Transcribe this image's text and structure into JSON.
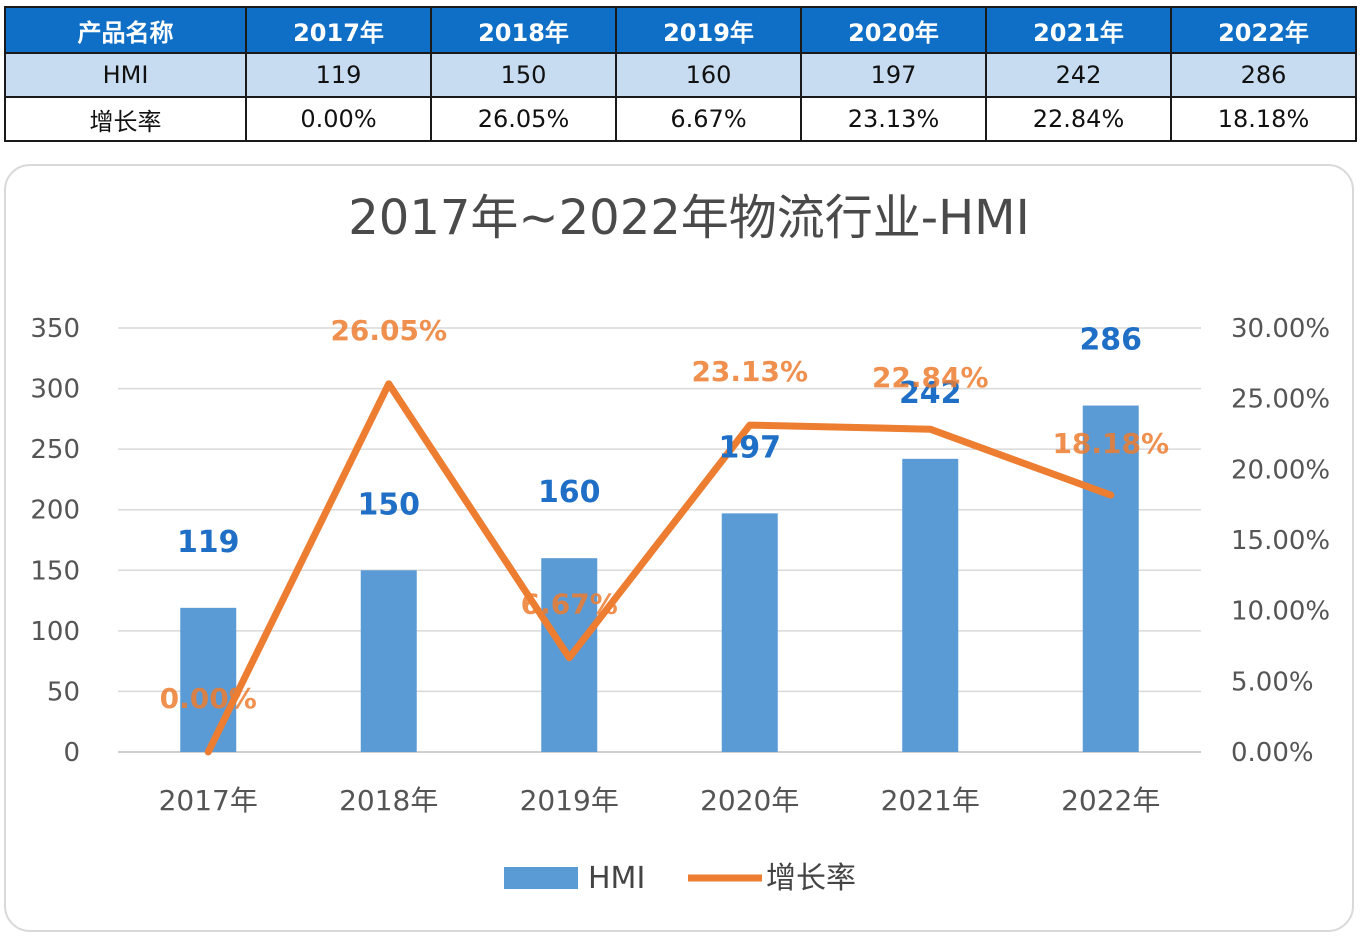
{
  "table": {
    "header_label": "产品名称",
    "years": [
      "2017年",
      "2018年",
      "2019年",
      "2020年",
      "2021年",
      "2022年"
    ],
    "rows": [
      {
        "label": "HMI",
        "cells": [
          "119",
          "150",
          "160",
          "197",
          "242",
          "286"
        ]
      },
      {
        "label": "增长率",
        "cells": [
          "0.00%",
          "26.05%",
          "6.67%",
          "23.13%",
          "22.84%",
          "18.18%"
        ]
      }
    ]
  },
  "chart_data": {
    "type": "bar",
    "title": "2017年~2022年物流行业-HMI",
    "categories": [
      "2017年",
      "2018年",
      "2019年",
      "2020年",
      "2021年",
      "2022年"
    ],
    "series": [
      {
        "name": "HMI",
        "type": "bar",
        "axis": "left",
        "values": [
          119,
          150,
          160,
          197,
          242,
          286
        ],
        "labels": [
          "119",
          "150",
          "160",
          "197",
          "242",
          "286"
        ],
        "color": "#5b9bd5",
        "label_color": "#1f6fc6"
      },
      {
        "name": "增长率",
        "type": "line",
        "axis": "right",
        "values": [
          0.0,
          26.05,
          6.67,
          23.13,
          22.84,
          18.18
        ],
        "labels": [
          "0.00%",
          "26.05%",
          "6.67%",
          "23.13%",
          "22.84%",
          "18.18%"
        ],
        "color": "#ed7d31"
      }
    ],
    "y_left": {
      "range": [
        0,
        350
      ],
      "ticks": [
        "0",
        "50",
        "100",
        "150",
        "200",
        "250",
        "300",
        "350"
      ]
    },
    "y_right": {
      "range": [
        0,
        30
      ],
      "ticks": [
        "0.00%",
        "5.00%",
        "10.00%",
        "15.00%",
        "20.00%",
        "25.00%",
        "30.00%"
      ]
    },
    "grid": true,
    "legend_position": "bottom"
  }
}
